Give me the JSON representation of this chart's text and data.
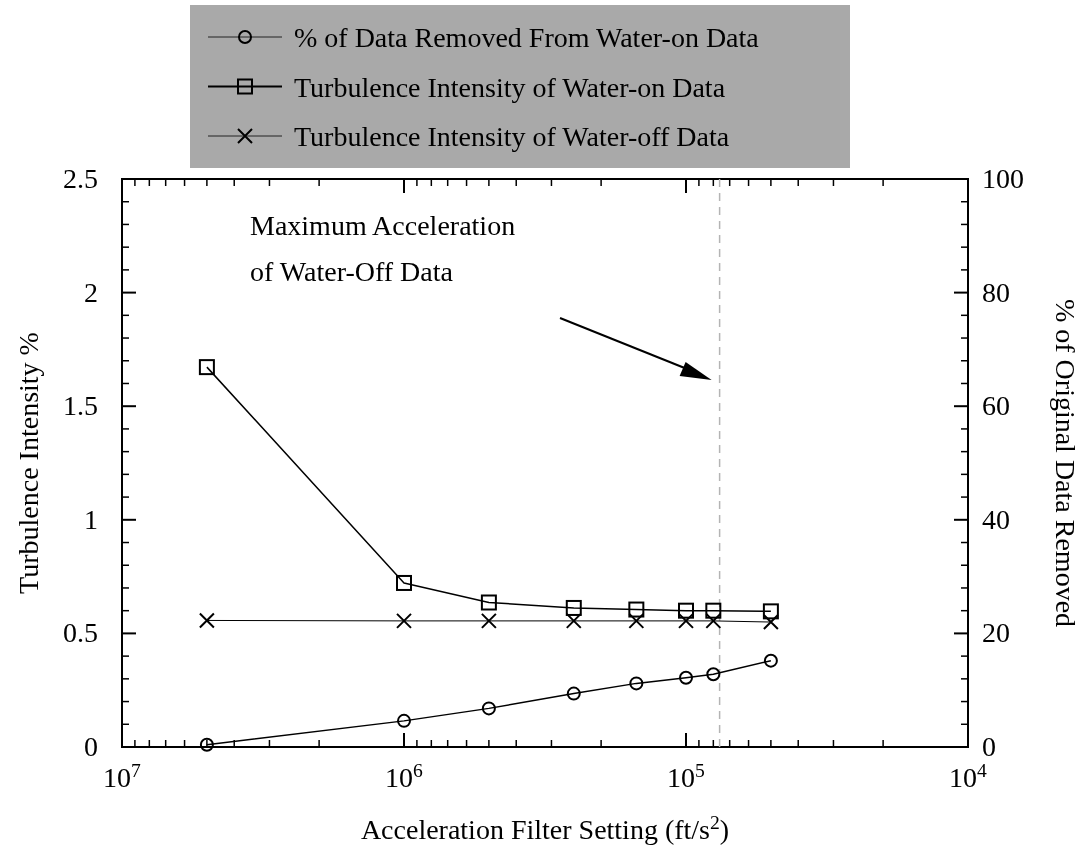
{
  "chart_data": {
    "type": "line",
    "xlabel": "Acceleration Filter Setting (ft/s$^{2}$)",
    "ylabel": "Turbulence Intensity %",
    "y2label": "% of Original Data Removed",
    "log": "x",
    "xlim": [
      10000000,
      10000
    ],
    "xticks": [
      {
        "value": 10000000,
        "label": "10$^{7}$"
      },
      {
        "value": 1000000,
        "label": "10$^{6}$"
      },
      {
        "value": 100000,
        "label": "10$^{5}$"
      },
      {
        "value": 10000,
        "label": "10$^{4}$"
      }
    ],
    "ylim": [
      0,
      2.5
    ],
    "yticks": [
      0,
      0.5,
      1,
      1.5,
      2,
      2.5
    ],
    "y2lim": [
      0,
      100
    ],
    "y2ticks": [
      0,
      20,
      40,
      60,
      80,
      100
    ],
    "x": [
      5000000,
      1000000,
      500000,
      250000,
      150000,
      100000,
      80000,
      50000
    ],
    "series": [
      {
        "name": "% of Data Removed From Water-on Data",
        "color": "#000000",
        "axis": "y2",
        "marker": "circle",
        "values": [
          0.4,
          4.6,
          6.8,
          9.4,
          11.2,
          12.2,
          12.8,
          15.2
        ]
      },
      {
        "name": "Turbulence Intensity of Water-on Data",
        "color": "#000000",
        "marker": "square",
        "values": [
          1.672,
          0.722,
          0.636,
          0.612,
          0.605,
          0.6,
          0.6,
          0.597
        ]
      },
      {
        "name": "Turbulence Intensity of Water-off Data",
        "color": "#000000",
        "marker": "cross",
        "values": [
          0.557,
          0.555,
          0.555,
          0.555,
          0.555,
          0.555,
          0.555,
          0.55
        ]
      }
    ],
    "ref_lines": [
      {
        "axis": "x",
        "value": 76000,
        "color": "#b4b4b4",
        "line_style": "dashed"
      }
    ],
    "annotations": [
      "Maximum Acceleration\nof Water-Off Data"
    ],
    "legend": "top",
    "grid": false,
    "line_style": "solid"
  }
}
